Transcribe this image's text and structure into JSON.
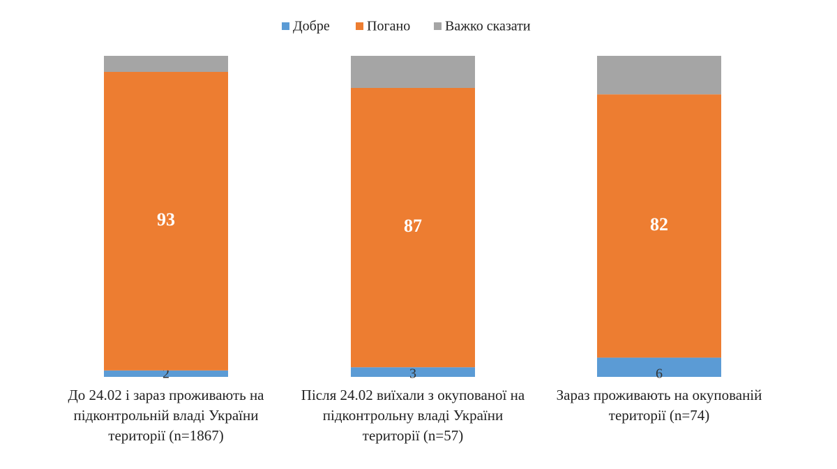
{
  "chart_data": {
    "type": "stacked_bar",
    "categories": [
      "До 24.02 і зараз проживають на підконтрольній владі України території (n=1867)",
      "Після 24.02 виїхали з окупованої на підконтрольну владі України території (n=57)",
      "Зараз проживають на окупованій території (n=74)"
    ],
    "series": [
      {
        "name": "Добре",
        "color": "#5b9bd5",
        "values": [
          2,
          3,
          6
        ],
        "labels": true
      },
      {
        "name": "Погано",
        "color": "#ed7d31",
        "values": [
          93,
          87,
          82
        ],
        "labels": true
      },
      {
        "name": "Важко сказати",
        "color": "#a5a5a5",
        "values": [
          5,
          10,
          12
        ],
        "labels": false
      }
    ],
    "ylim": [
      0,
      100
    ],
    "legend": "top"
  }
}
